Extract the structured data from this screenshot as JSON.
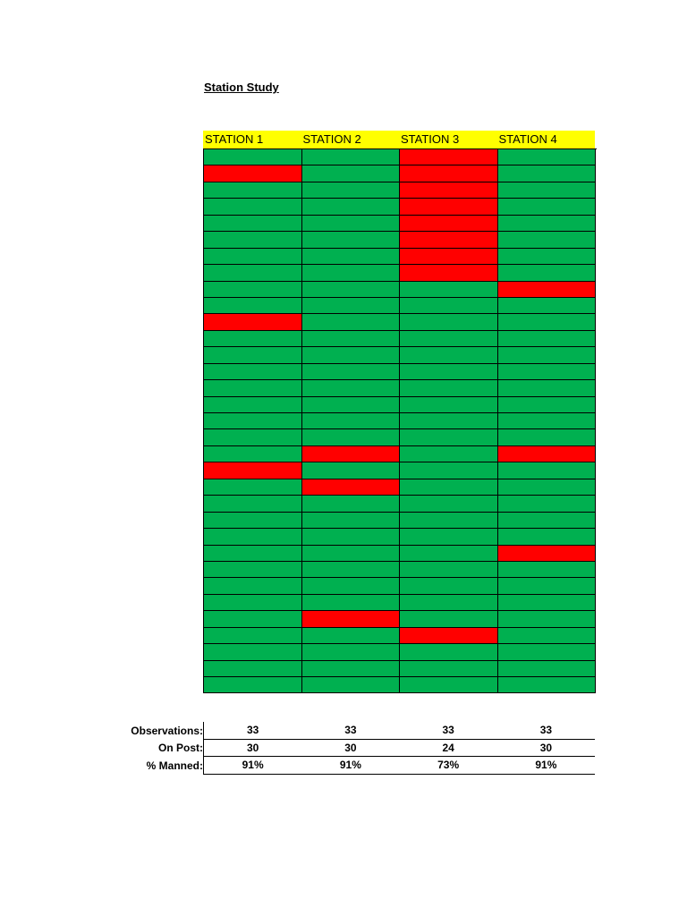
{
  "title": "Station Study",
  "headers": [
    "STATION 1",
    "STATION 2",
    "STATION 3",
    "STATION 4"
  ],
  "colors": {
    "on_post": "#00b050",
    "off_post": "#ff0000",
    "header": "#ffff00"
  },
  "observations_grid": [
    [
      1,
      1,
      0,
      1
    ],
    [
      0,
      1,
      0,
      1
    ],
    [
      1,
      1,
      0,
      1
    ],
    [
      1,
      1,
      0,
      1
    ],
    [
      1,
      1,
      0,
      1
    ],
    [
      1,
      1,
      0,
      1
    ],
    [
      1,
      1,
      0,
      1
    ],
    [
      1,
      1,
      0,
      1
    ],
    [
      1,
      1,
      1,
      0
    ],
    [
      1,
      1,
      1,
      1
    ],
    [
      0,
      1,
      1,
      1
    ],
    [
      1,
      1,
      1,
      1
    ],
    [
      1,
      1,
      1,
      1
    ],
    [
      1,
      1,
      1,
      1
    ],
    [
      1,
      1,
      1,
      1
    ],
    [
      1,
      1,
      1,
      1
    ],
    [
      1,
      1,
      1,
      1
    ],
    [
      1,
      1,
      1,
      1
    ],
    [
      1,
      0,
      1,
      0
    ],
    [
      0,
      1,
      1,
      1
    ],
    [
      1,
      0,
      1,
      1
    ],
    [
      1,
      1,
      1,
      1
    ],
    [
      1,
      1,
      1,
      1
    ],
    [
      1,
      1,
      1,
      1
    ],
    [
      1,
      1,
      1,
      0
    ],
    [
      1,
      1,
      1,
      1
    ],
    [
      1,
      1,
      1,
      1
    ],
    [
      1,
      1,
      1,
      1
    ],
    [
      1,
      0,
      1,
      1
    ],
    [
      1,
      1,
      0,
      1
    ],
    [
      1,
      1,
      1,
      1
    ],
    [
      1,
      1,
      1,
      1
    ],
    [
      1,
      1,
      1,
      1
    ]
  ],
  "summary": [
    {
      "label": "Observations:",
      "values": [
        "33",
        "33",
        "33",
        "33"
      ]
    },
    {
      "label": "On Post:",
      "values": [
        "30",
        "30",
        "24",
        "30"
      ]
    },
    {
      "label": "% Manned:",
      "values": [
        "91%",
        "91%",
        "73%",
        "91%"
      ]
    }
  ]
}
